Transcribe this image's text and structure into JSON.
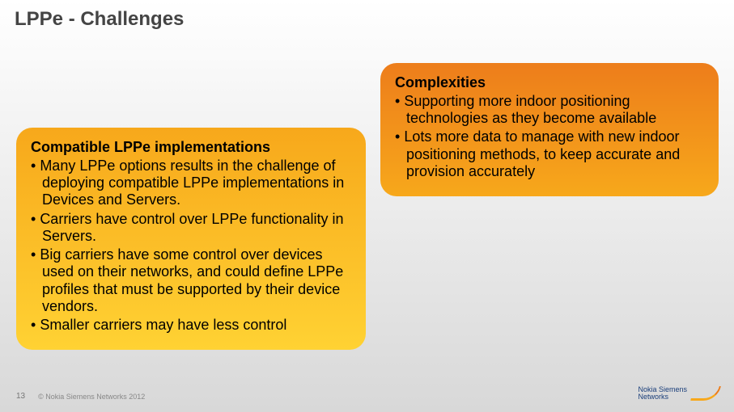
{
  "title": "LPPe - Challenges",
  "left_box": {
    "heading": "Compatible LPPe implementations",
    "bullets": [
      "Many LPPe options results in the challenge of deploying compatible LPPe implementations in Devices and Servers.",
      "Carriers have control over LPPe functionality in Servers.",
      "Big carriers have some control over devices used on their networks, and could define LPPe profiles that must be supported by their device vendors.",
      "Smaller carriers may have less control"
    ],
    "bg_top": "#f7a81b",
    "bg_bottom": "#ffd233"
  },
  "right_box": {
    "heading": "Complexities",
    "bullets": [
      "Supporting more indoor positioning technologies as they become available",
      "Lots more data to manage with new indoor positioning methods, to keep accurate and provision accurately"
    ],
    "bg_top": "#ed7d1b",
    "bg_bottom": "#f7a81b"
  },
  "footer": {
    "page": "13",
    "copyright": "© Nokia Siemens Networks 2012"
  },
  "logo": {
    "line1": "Nokia Siemens",
    "line2": "Networks"
  }
}
